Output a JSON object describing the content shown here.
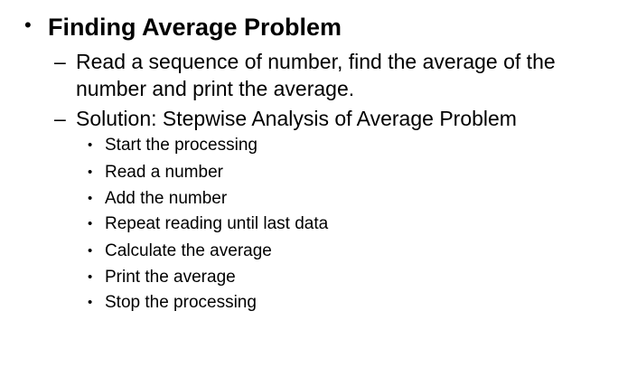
{
  "slide": {
    "heading": "Finding Average Problem",
    "level2": [
      {
        "line1": "Read a sequence of number, find the average of the",
        "line2": "number and print the average."
      },
      {
        "line1": "Solution: Stepwise Analysis of Average Problem"
      }
    ],
    "steps": [
      "Start the processing",
      "Read a number",
      "Add the number",
      "Repeat reading until last data",
      "Calculate the average",
      "Print the average",
      "Stop the processing"
    ]
  }
}
